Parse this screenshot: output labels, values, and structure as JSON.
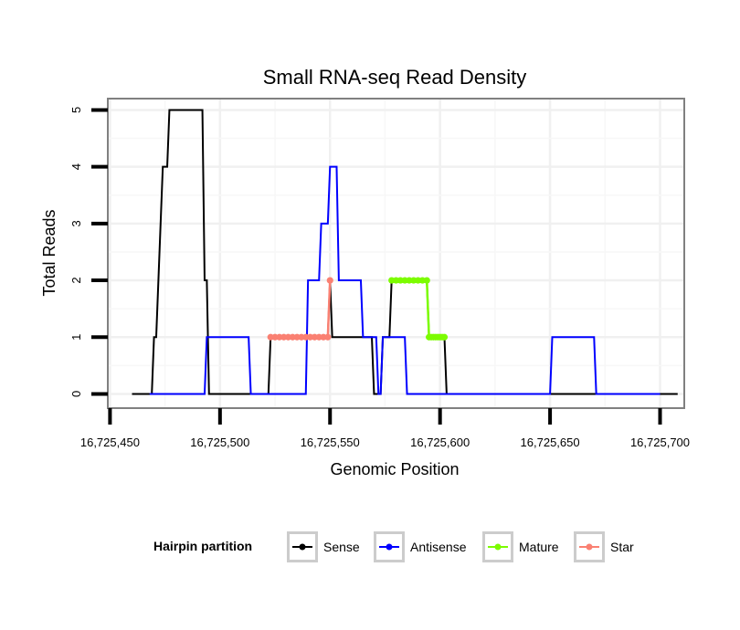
{
  "chart_data": {
    "type": "line",
    "title": "Small RNA-seq Read Density",
    "xlabel": "Genomic Position",
    "ylabel": "Total Reads",
    "xlim": [
      16725449,
      16725711
    ],
    "ylim": [
      -0.25,
      5.2
    ],
    "x_ticks": [
      16725450,
      16725500,
      16725550,
      16725600,
      16725650,
      16725700
    ],
    "x_tick_labels": [
      "16,725,450",
      "16,725,500",
      "16,725,550",
      "16,725,600",
      "16,725,650",
      "16,725,700"
    ],
    "y_ticks": [
      0,
      1,
      2,
      3,
      4,
      5
    ],
    "y_tick_labels": [
      "0",
      "1",
      "2",
      "3",
      "4",
      "5"
    ],
    "grid": true,
    "legend": {
      "title": "Hairpin partition",
      "position": "bottom",
      "entries": [
        {
          "label": "Sense",
          "color": "#000000"
        },
        {
          "label": "Antisense",
          "color": "#0000ff"
        },
        {
          "label": "Mature",
          "color": "#7cfc00"
        },
        {
          "label": "Star",
          "color": "#fa8072"
        }
      ]
    },
    "series": [
      {
        "name": "Sense",
        "color": "#000000",
        "points": [
          [
            16725460,
            0
          ],
          [
            16725469,
            0
          ],
          [
            16725470,
            1
          ],
          [
            16725471,
            1
          ],
          [
            16725472,
            2
          ],
          [
            16725473,
            3
          ],
          [
            16725474,
            4
          ],
          [
            16725476,
            4
          ],
          [
            16725477,
            5
          ],
          [
            16725484,
            5
          ],
          [
            16725492,
            5
          ],
          [
            16725493,
            2
          ],
          [
            16725494,
            2
          ],
          [
            16725495,
            0
          ],
          [
            16725508,
            0
          ],
          [
            16725522,
            0
          ],
          [
            16725523,
            1
          ],
          [
            16725548,
            1
          ],
          [
            16725549,
            1
          ],
          [
            16725550,
            2
          ],
          [
            16725551,
            1
          ],
          [
            16725569,
            1
          ],
          [
            16725570,
            0
          ],
          [
            16725573,
            0
          ],
          [
            16725574,
            1
          ],
          [
            16725577,
            1
          ],
          [
            16725578,
            2
          ],
          [
            16725585,
            2
          ],
          [
            16725594,
            2
          ],
          [
            16725595,
            1
          ],
          [
            16725602,
            1
          ],
          [
            16725603,
            0
          ],
          [
            16725650,
            0
          ],
          [
            16725708,
            0
          ]
        ]
      },
      {
        "name": "Antisense",
        "color": "#0000ff",
        "points": [
          [
            16725468,
            0
          ],
          [
            16725493,
            0
          ],
          [
            16725494,
            1
          ],
          [
            16725513,
            1
          ],
          [
            16725514,
            0
          ],
          [
            16725539,
            0
          ],
          [
            16725540,
            2
          ],
          [
            16725545,
            2
          ],
          [
            16725546,
            3
          ],
          [
            16725549,
            3
          ],
          [
            16725550,
            4
          ],
          [
            16725553,
            4
          ],
          [
            16725554,
            2
          ],
          [
            16725559,
            2
          ],
          [
            16725564,
            2
          ],
          [
            16725565,
            1
          ],
          [
            16725571,
            1
          ],
          [
            16725572,
            0
          ],
          [
            16725573,
            0
          ],
          [
            16725574,
            1
          ],
          [
            16725583,
            1
          ],
          [
            16725584,
            1
          ],
          [
            16725585,
            0
          ],
          [
            16725650,
            0
          ],
          [
            16725651,
            1
          ],
          [
            16725670,
            1
          ],
          [
            16725671,
            0
          ],
          [
            16725700,
            0
          ]
        ]
      },
      {
        "name": "Mature",
        "color": "#7cfc00",
        "points": [
          [
            16725578,
            2
          ],
          [
            16725580,
            2
          ],
          [
            16725582,
            2
          ],
          [
            16725584,
            2
          ],
          [
            16725586,
            2
          ],
          [
            16725588,
            2
          ],
          [
            16725590,
            2
          ],
          [
            16725592,
            2
          ],
          [
            16725594,
            2
          ],
          [
            16725595,
            1
          ],
          [
            16725596,
            1
          ],
          [
            16725597,
            1
          ],
          [
            16725598,
            1
          ],
          [
            16725599,
            1
          ],
          [
            16725600,
            1
          ],
          [
            16725601,
            1
          ],
          [
            16725602,
            1
          ]
        ]
      },
      {
        "name": "Star",
        "color": "#fa8072",
        "points": [
          [
            16725523,
            1
          ],
          [
            16725525,
            1
          ],
          [
            16725527,
            1
          ],
          [
            16725529,
            1
          ],
          [
            16725531,
            1
          ],
          [
            16725533,
            1
          ],
          [
            16725535,
            1
          ],
          [
            16725537,
            1
          ],
          [
            16725539,
            1
          ],
          [
            16725541,
            1
          ],
          [
            16725543,
            1
          ],
          [
            16725545,
            1
          ],
          [
            16725547,
            1
          ],
          [
            16725549,
            1
          ],
          [
            16725550,
            2
          ]
        ]
      }
    ]
  }
}
